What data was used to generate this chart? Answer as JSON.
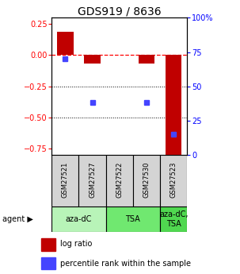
{
  "title": "GDS919 / 8636",
  "samples": [
    "GSM27521",
    "GSM27527",
    "GSM27522",
    "GSM27530",
    "GSM27523"
  ],
  "log_ratio": [
    0.185,
    -0.07,
    0.0,
    -0.07,
    -0.8
  ],
  "percentile": [
    70,
    38,
    null,
    38,
    15
  ],
  "ylim_left": [
    -0.8,
    0.3
  ],
  "yticks_left": [
    0.25,
    0,
    -0.25,
    -0.5,
    -0.75
  ],
  "yticks_right": [
    100,
    75,
    50,
    25,
    0
  ],
  "bar_color": "#c00000",
  "dot_color": "#4444ff",
  "bar_width": 0.6,
  "group_info": [
    {
      "start": 0,
      "end": 1,
      "label": "aza-dC",
      "color": "#b8f4b8"
    },
    {
      "start": 2,
      "end": 3,
      "label": "TSA",
      "color": "#70e870"
    },
    {
      "start": 4,
      "end": 4,
      "label": "aza-dC,\nTSA",
      "color": "#50d850"
    }
  ],
  "legend_bar_label": "log ratio",
  "legend_dot_label": "percentile rank within the sample",
  "title_fontsize": 10,
  "tick_fontsize": 7,
  "sample_fontsize": 6,
  "agent_fontsize": 7,
  "legend_fontsize": 7
}
